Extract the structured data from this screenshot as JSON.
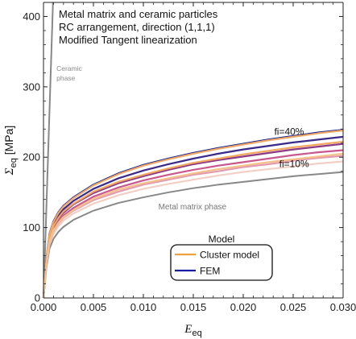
{
  "chart_data": {
    "type": "line",
    "title_lines": [
      "Metal matrix and ceramic particles",
      "RC arrangement, direction (1,1,1)",
      "Modified Tangent linearization"
    ],
    "xlabel": {
      "symbol": "E",
      "subscript": "eq"
    },
    "ylabel": {
      "symbol": "Σ",
      "subscript": "eq",
      "unit": "[MPa]"
    },
    "xlim": [
      0,
      0.03
    ],
    "ylim": [
      0,
      420
    ],
    "x_ticks": [
      0.0,
      0.005,
      0.01,
      0.015,
      0.02,
      0.025,
      0.03
    ],
    "x_tick_labels": [
      "0.000",
      "0.005",
      "0.010",
      "0.015",
      "0.020",
      "0.025",
      "0.030"
    ],
    "y_ticks": [
      0,
      100,
      200,
      300,
      400
    ],
    "y_tick_labels": [
      "0",
      "100",
      "200",
      "300",
      "400"
    ],
    "grid": false,
    "x_samples": [
      0,
      0.0003,
      0.0006,
      0.001,
      0.0015,
      0.002,
      0.003,
      0.005,
      0.0075,
      0.01,
      0.0125,
      0.015,
      0.0175,
      0.02,
      0.0225,
      0.025,
      0.0275,
      0.03
    ],
    "series": [
      {
        "name": "Ceramic phase",
        "color": "#888888",
        "x": [
          0,
          0.00095
        ],
        "y": [
          0,
          420
        ]
      },
      {
        "name": "Metal matrix phase",
        "color": "#888888",
        "y": [
          0,
          44,
          70,
          84,
          94,
          101,
          111,
          124,
          135,
          143,
          150,
          156,
          161,
          165,
          169,
          173,
          176,
          179
        ]
      },
      {
        "color": "#f2cfc4",
        "y": [
          0,
          48,
          76,
          91,
          102,
          110,
          120,
          134,
          146,
          155,
          162,
          168,
          174,
          179,
          183,
          187,
          191,
          194
        ]
      },
      {
        "color": "#e49aae",
        "y": [
          0,
          50,
          79,
          95,
          106,
          114,
          124,
          139,
          151,
          161,
          168,
          175,
          180,
          186,
          190,
          195,
          199,
          202
        ]
      },
      {
        "color": "#c9578e",
        "y": [
          0,
          51,
          81,
          98,
          109,
          117,
          128,
          144,
          157,
          167,
          175,
          182,
          188,
          193,
          198,
          203,
          207,
          210
        ]
      },
      {
        "color": "#8b3a88",
        "y": [
          0,
          53,
          84,
          101,
          113,
          121,
          133,
          149,
          163,
          173,
          182,
          190,
          196,
          201,
          206,
          211,
          215,
          219
        ]
      },
      {
        "color": "#3a2a8a",
        "y": [
          0,
          55,
          87,
          105,
          117,
          126,
          138,
          155,
          170,
          181,
          190,
          198,
          205,
          211,
          216,
          221,
          225,
          229
        ]
      },
      {
        "color": "#0a1a8a",
        "y": [
          0,
          57,
          91,
          109,
          122,
          131,
          143,
          161,
          177,
          189,
          198,
          206,
          213,
          219,
          225,
          230,
          235,
          239
        ]
      },
      {
        "color": "#f0a868",
        "y": [
          0,
          56,
          90,
          108,
          121,
          130,
          142,
          160,
          176,
          188,
          197,
          205,
          212,
          218,
          224,
          229,
          234,
          238
        ]
      },
      {
        "color": "#f2a860",
        "y": [
          0,
          54,
          85,
          102,
          114,
          123,
          134,
          151,
          165,
          175,
          184,
          192,
          198,
          204,
          209,
          214,
          218,
          222
        ]
      },
      {
        "color": "#f4c08c",
        "y": [
          0,
          50,
          80,
          96,
          107,
          115,
          125,
          141,
          154,
          163,
          170,
          177,
          183,
          188,
          193,
          197,
          201,
          205
        ]
      }
    ],
    "annotations": [
      {
        "text": "Ceramic",
        "x": 0.0013,
        "y": 323,
        "style": "small"
      },
      {
        "text": "phase",
        "x": 0.0013,
        "y": 309,
        "style": "small"
      },
      {
        "text": "fi=40%",
        "x": 0.0231,
        "y": 232,
        "style": "normal"
      },
      {
        "text": "fi=10%",
        "x": 0.0236,
        "y": 186,
        "style": "normal"
      },
      {
        "text": "Metal matrix phase",
        "x": 0.0115,
        "y": 126,
        "style": "gray"
      }
    ],
    "legend": {
      "title": "Model",
      "placement": "bottom-right",
      "items": [
        {
          "label": "Cluster model",
          "color": "#f0a040"
        },
        {
          "label": "FEM",
          "color": "#1a1aa0"
        }
      ]
    }
  }
}
